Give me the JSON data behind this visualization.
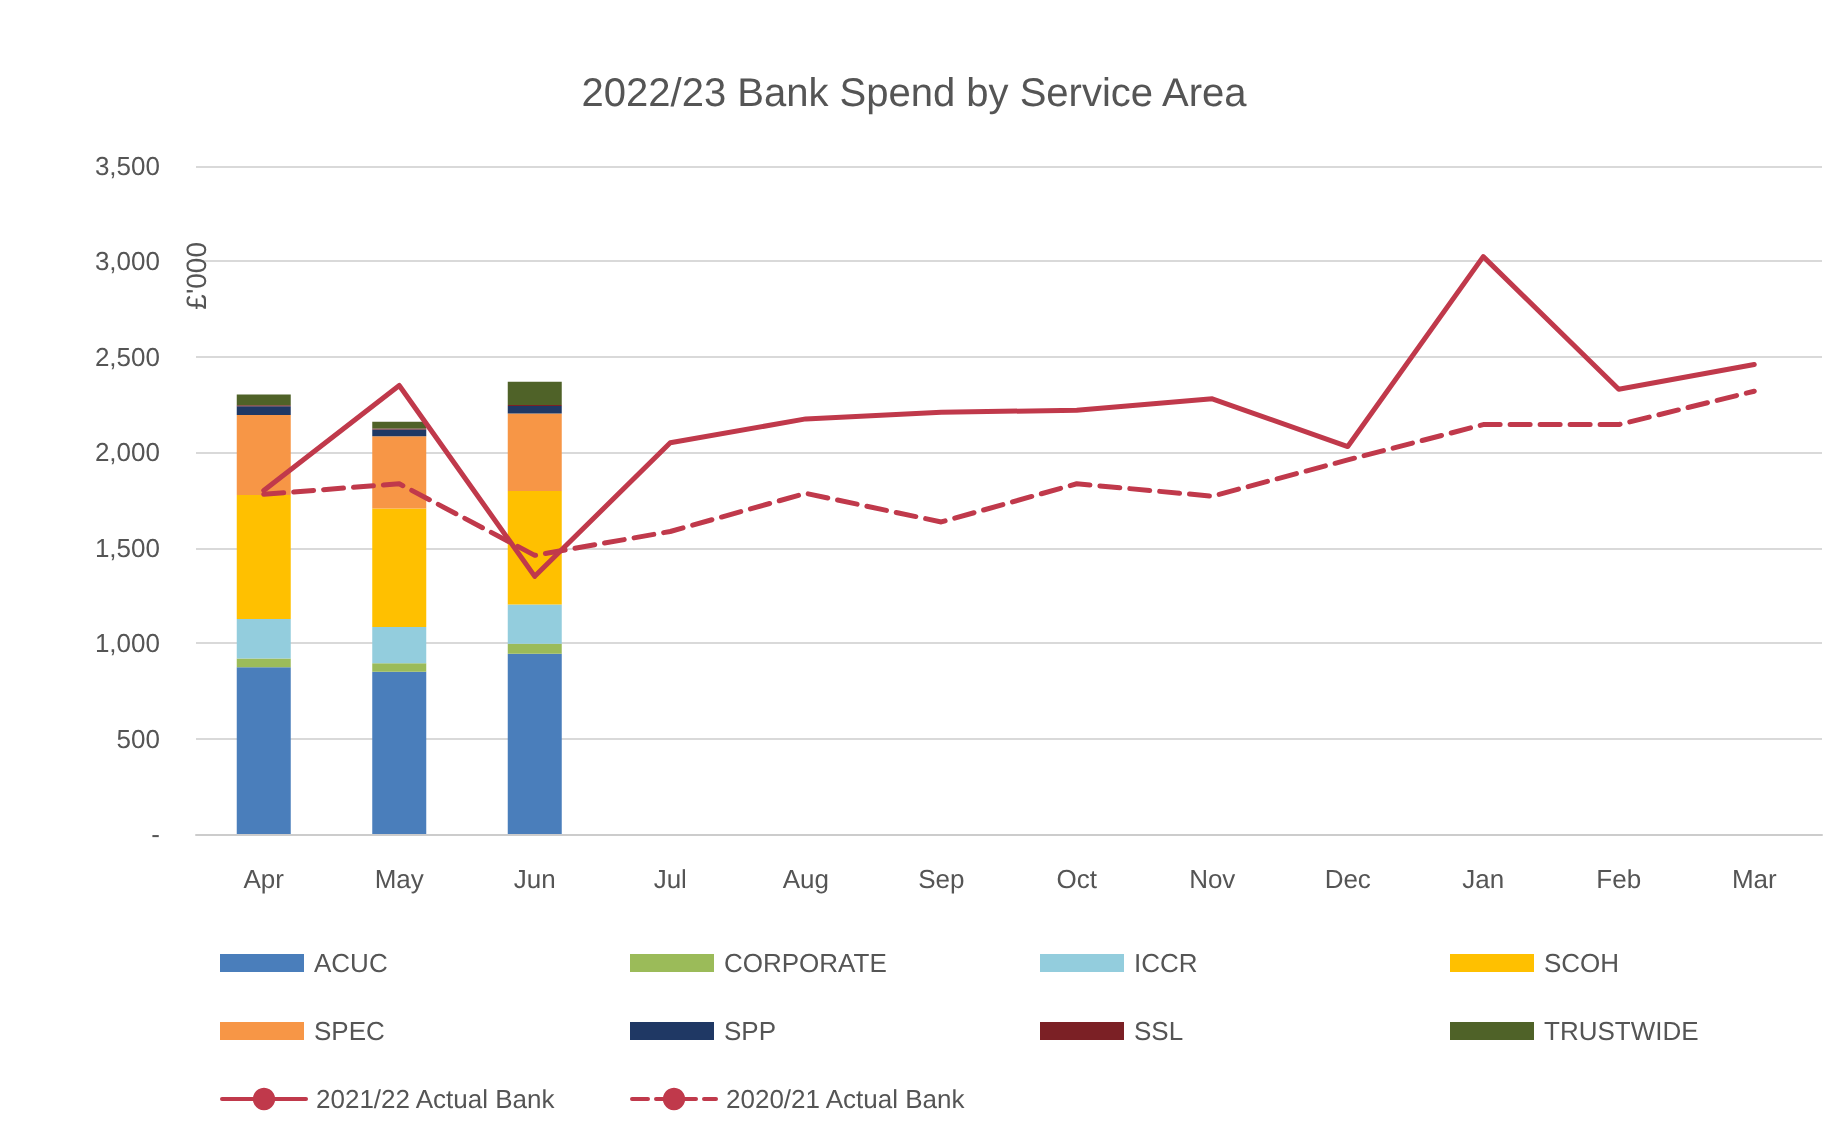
{
  "chart_data": {
    "type": "bar",
    "title": "2022/23 Bank Spend by Service Area",
    "ylabel": "£'000",
    "categories": [
      "Apr",
      "May",
      "Jun",
      "Jul",
      "Aug",
      "Sep",
      "Oct",
      "Nov",
      "Dec",
      "Jan",
      "Feb",
      "Mar"
    ],
    "stacked": true,
    "series": [
      {
        "name": "ACUC",
        "color": "#4a7ebb",
        "values": [
          874,
          850,
          944,
          null,
          null,
          null,
          null,
          null,
          null,
          null,
          null,
          null
        ]
      },
      {
        "name": "CORPORATE",
        "color": "#9bbb59",
        "values": [
          46,
          45,
          53,
          null,
          null,
          null,
          null,
          null,
          null,
          null,
          null,
          null
        ]
      },
      {
        "name": "ICCR",
        "color": "#93cddd",
        "values": [
          206,
          189,
          206,
          null,
          null,
          null,
          null,
          null,
          null,
          null,
          null,
          null
        ]
      },
      {
        "name": "SCOH",
        "color": "#ffc000",
        "values": [
          650,
          622,
          594,
          null,
          null,
          null,
          null,
          null,
          null,
          null,
          null,
          null
        ]
      },
      {
        "name": "SPEC",
        "color": "#f79646",
        "values": [
          420,
          378,
          406,
          null,
          null,
          null,
          null,
          null,
          null,
          null,
          null,
          null
        ]
      },
      {
        "name": "SPP",
        "color": "#1f3864",
        "values": [
          45,
          35,
          40,
          null,
          null,
          null,
          null,
          null,
          null,
          null,
          null,
          null
        ]
      },
      {
        "name": "SSL",
        "color": "#7b2025",
        "values": [
          5,
          5,
          5,
          null,
          null,
          null,
          null,
          null,
          null,
          null,
          null,
          null
        ]
      },
      {
        "name": "TRUSTWIDE",
        "color": "#4f6228",
        "values": [
          57,
          36,
          121,
          null,
          null,
          null,
          null,
          null,
          null,
          null,
          null,
          null
        ]
      },
      {
        "name": "2021/22 Actual Bank",
        "type": "line",
        "color": "#c0394b",
        "line_style": "solid",
        "values": [
          1800,
          2350,
          1350,
          2050,
          2175,
          2210,
          2220,
          2280,
          2030,
          3025,
          2330,
          2460
        ]
      },
      {
        "name": "2020/21 Actual Bank",
        "type": "line",
        "color": "#c0394b",
        "line_style": "dashed",
        "values": [
          1780,
          1835,
          1460,
          1585,
          1785,
          1635,
          1835,
          1770,
          1960,
          2145,
          2145,
          2320
        ]
      }
    ],
    "ylim": [
      0,
      3500
    ],
    "yticks": [
      {
        "value": 0,
        "label": "-"
      },
      {
        "value": 500,
        "label": "500"
      },
      {
        "value": 1000,
        "label": "1,000"
      },
      {
        "value": 1500,
        "label": "1,500"
      },
      {
        "value": 2000,
        "label": "2,000"
      },
      {
        "value": 2500,
        "label": "2,500"
      },
      {
        "value": 3000,
        "label": "3,000"
      },
      {
        "value": 3500,
        "label": "3,500"
      }
    ],
    "grid": "y",
    "legend": "bottom",
    "marker": "none"
  }
}
